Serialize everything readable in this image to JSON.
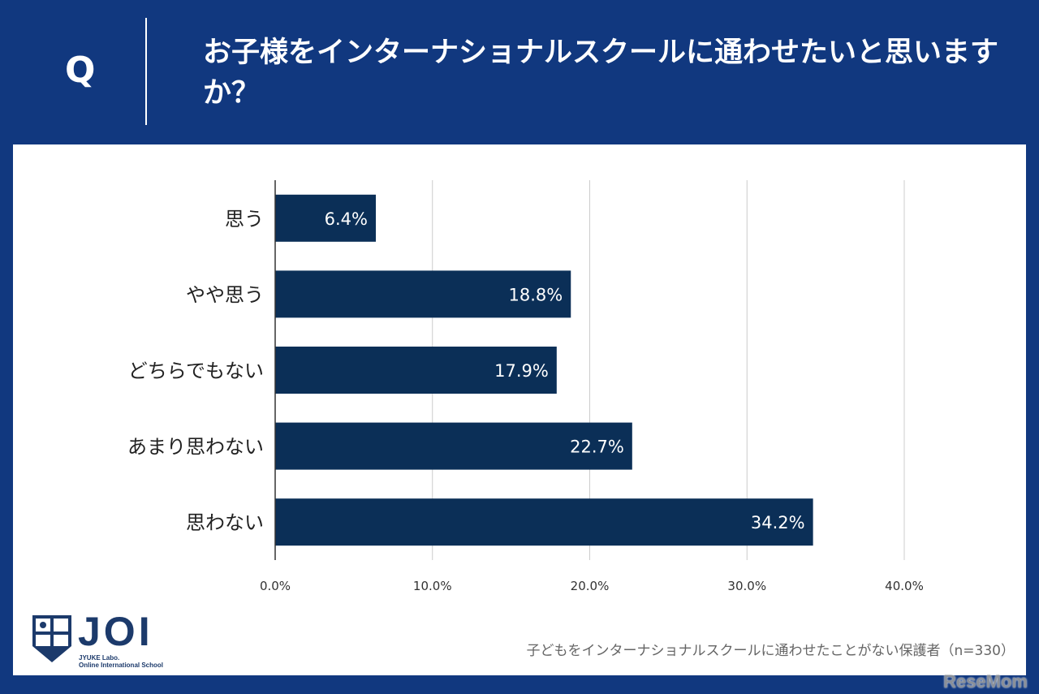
{
  "header": {
    "q_label": "Q",
    "title": "お子様をインターナショナルスクールに通わせたいと思いますか？"
  },
  "chart_data": {
    "type": "bar",
    "orientation": "horizontal",
    "categories": [
      "思う",
      "やや思う",
      "どちらでもない",
      "あまり思わない",
      "思わない"
    ],
    "values": [
      6.4,
      18.8,
      17.9,
      22.7,
      34.2
    ],
    "data_labels": [
      "6.4%",
      "18.8%",
      "17.9%",
      "22.7%",
      "34.2%"
    ],
    "xlim": [
      0,
      40
    ],
    "xticks": [
      0,
      10,
      20,
      30,
      40
    ],
    "xtick_labels": [
      "0.0%",
      "10.0%",
      "20.0%",
      "30.0%",
      "40.0%"
    ],
    "grid": true,
    "bar_color": "#0b2f57"
  },
  "footer": {
    "logo_text": "JOI",
    "logo_sub1": "JYUKE Labo.",
    "logo_sub2": "Online International School",
    "note": "子どもをインターナショナルスクールに通わせたことがない保護者（n=330）",
    "watermark": "ReseMom"
  }
}
